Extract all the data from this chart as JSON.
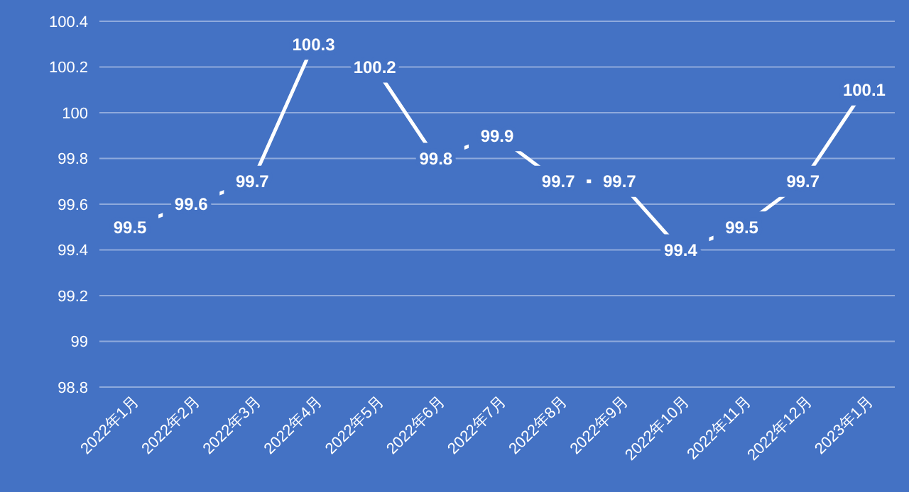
{
  "chart_data": {
    "type": "line",
    "categories": [
      "2022年1月",
      "2022年2月",
      "2022年3月",
      "2022年4月",
      "2022年5月",
      "2022年6月",
      "2022年7月",
      "2022年8月",
      "2022年9月",
      "2022年10月",
      "2022年11月",
      "2022年12月",
      "2023年1月"
    ],
    "series": [
      {
        "color": "#ffffff",
        "values": [
          99.5,
          99.6,
          99.7,
          100.3,
          100.2,
          99.8,
          99.9,
          99.7,
          99.7,
          99.4,
          99.5,
          99.7,
          100.1
        ]
      }
    ],
    "ylim": [
      98.8,
      100.4
    ],
    "yticks": [
      98.8,
      99,
      99.2,
      99.4,
      99.6,
      99.8,
      100,
      100.2,
      100.4
    ],
    "grid": "y",
    "data_labels": true,
    "line_style": "solid"
  }
}
